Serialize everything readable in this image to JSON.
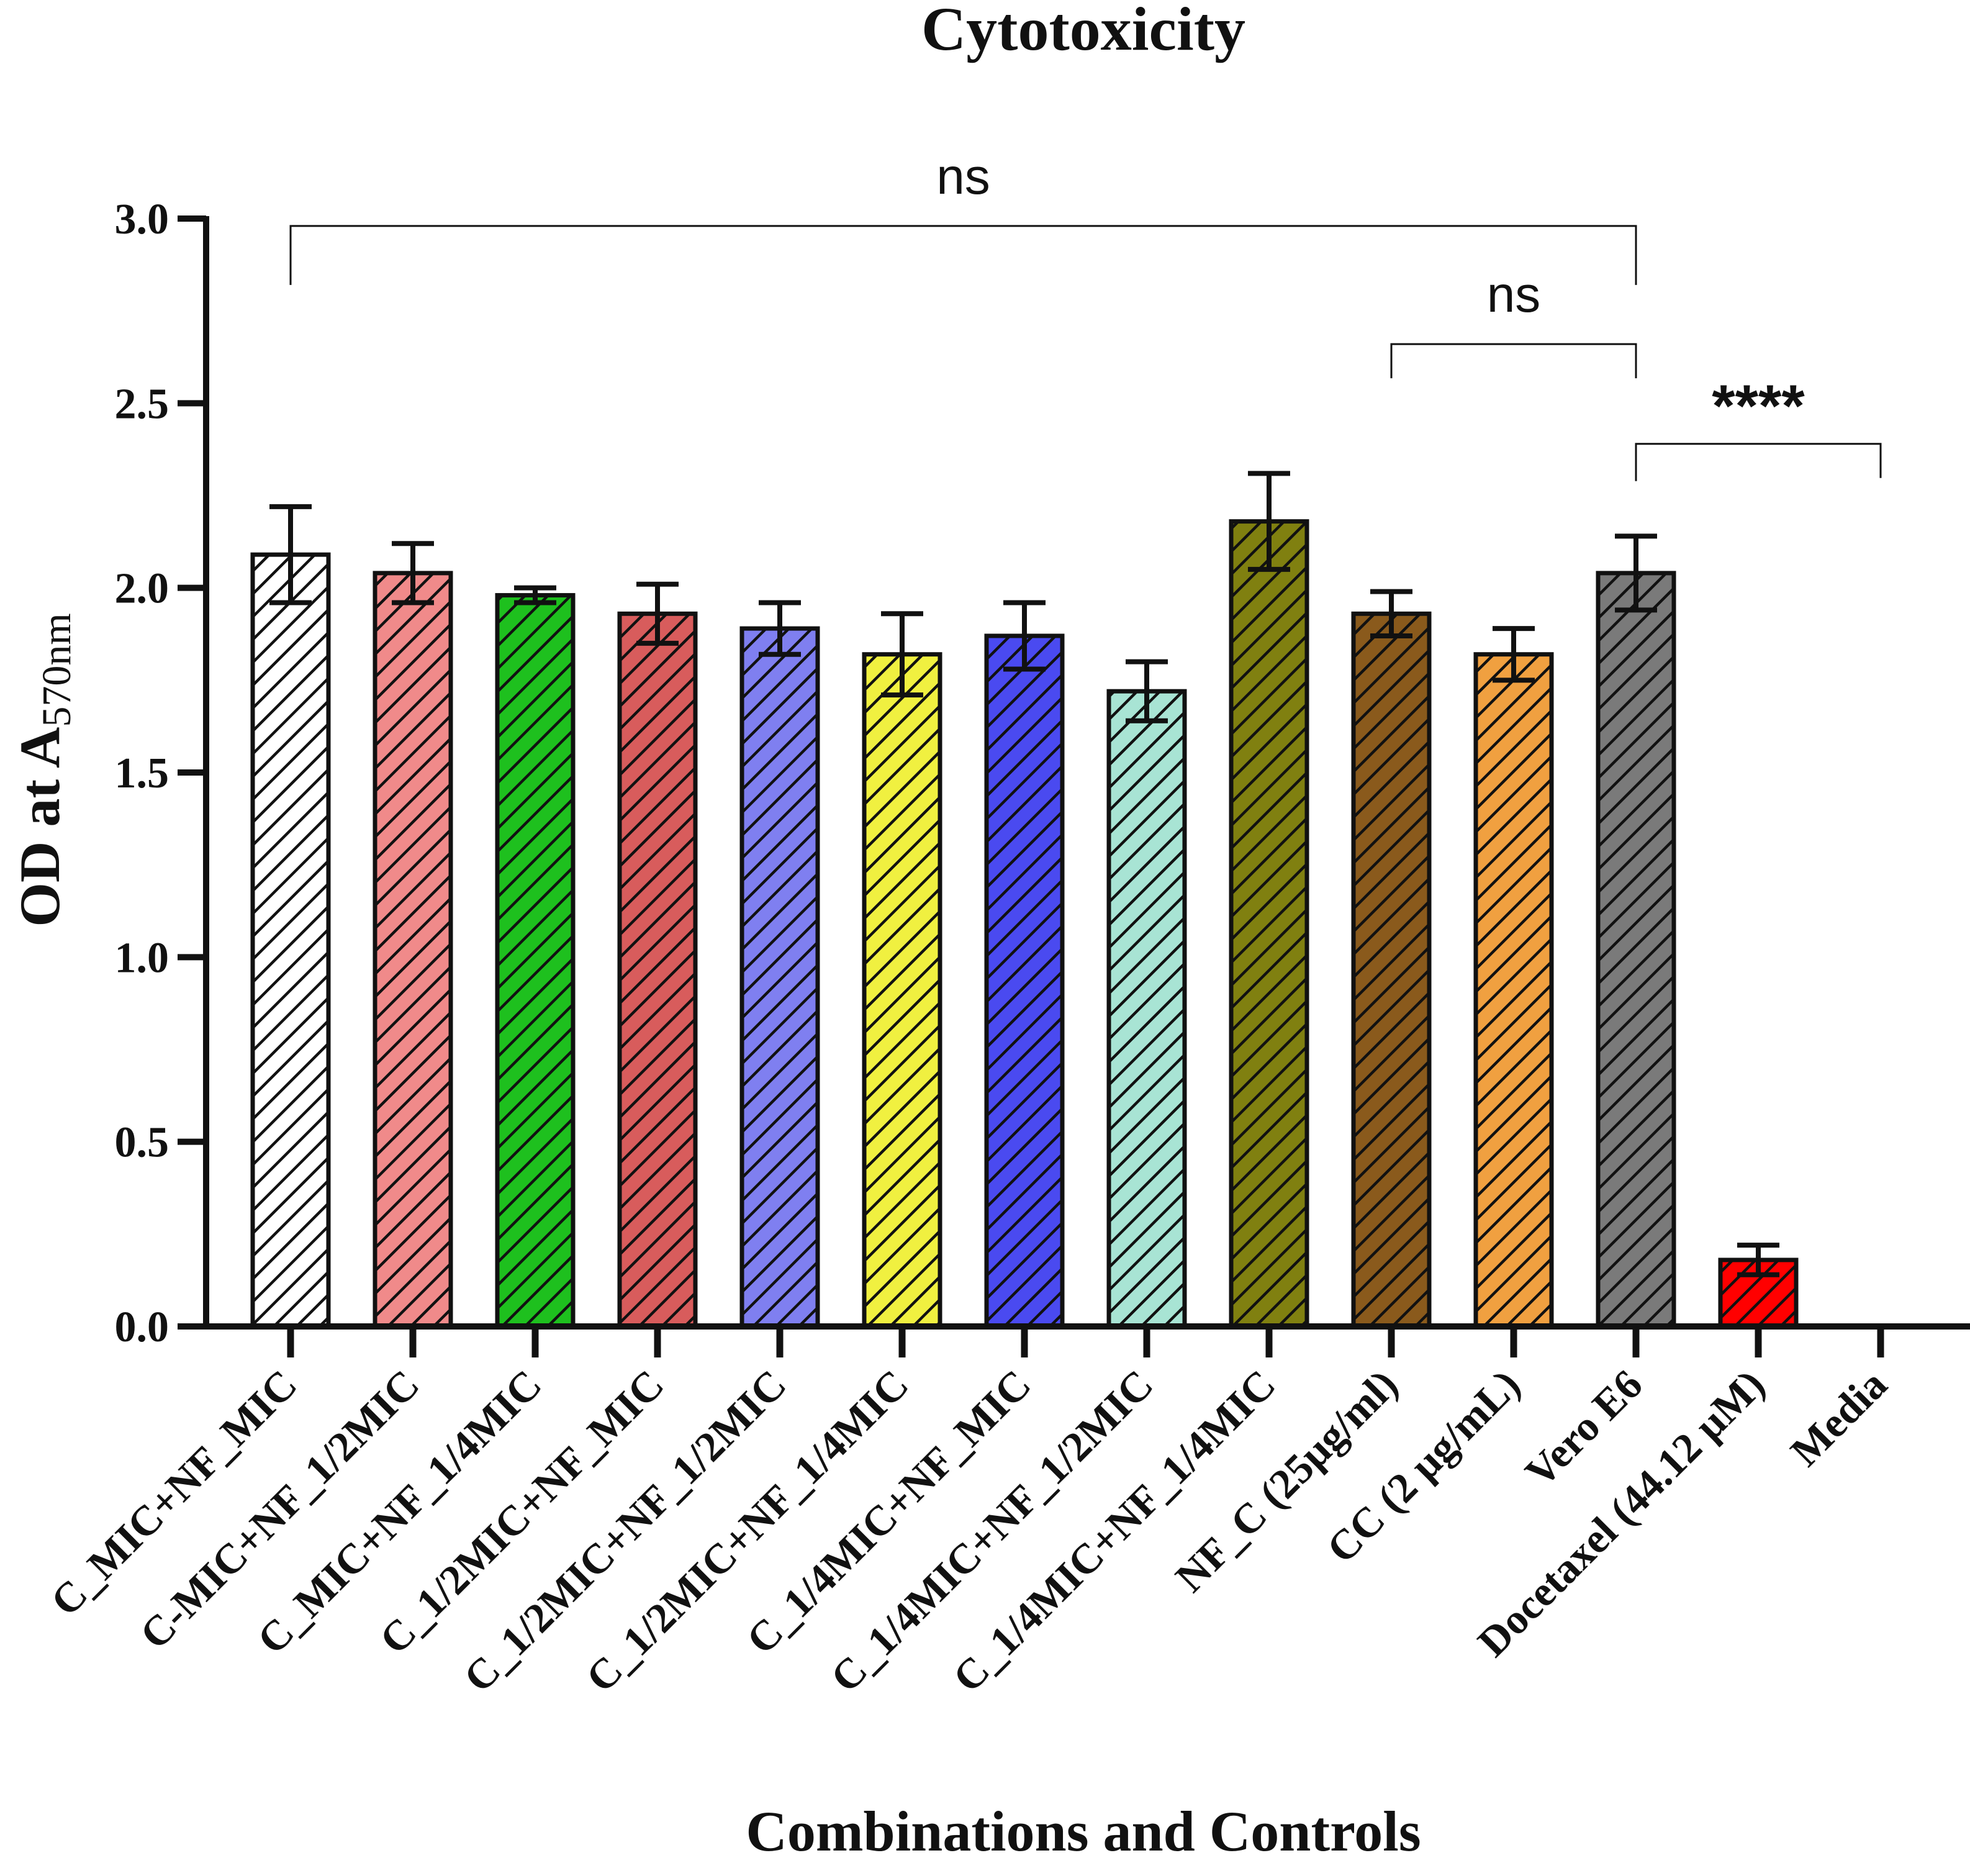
{
  "chart_data": {
    "type": "bar",
    "title": "Cytotoxicity",
    "xlabel": "Combinations and Controls",
    "ylabel_main": "OD at A",
    "ylabel_sub": "570nm",
    "ylim": [
      0,
      3
    ],
    "yticks": [
      "0.0",
      "0.5",
      "1.0",
      "1.5",
      "2.0",
      "2.5",
      "3.0"
    ],
    "categories": [
      "C_MIC+NF_MIC",
      "C-MIC+NF_1/2MIC",
      "C_MIC+NF_1/4MIC",
      "C_1/2MIC+NF_MIC",
      "C_1/2MIC+NF_1/2MIC",
      "C_1/2MIC+NF_1/4MIC",
      "C_1/4MIC+NF_MIC",
      "C_1/4MIC+NF_1/2MIC",
      "C_1/4MIC+NF_1/4MIC",
      "NF_C (25µg/ml)",
      "CC (2 µg/mL)",
      "Vero  E6",
      "Docetaxel (44.12 µM)",
      "Media"
    ],
    "values": [
      2.09,
      2.04,
      1.98,
      1.93,
      1.89,
      1.82,
      1.87,
      1.72,
      2.18,
      1.93,
      1.82,
      2.04,
      0.18,
      0
    ],
    "errors": [
      0.13,
      0.08,
      0.02,
      0.08,
      0.07,
      0.11,
      0.09,
      0.08,
      0.13,
      0.06,
      0.07,
      0.1,
      0.04,
      0
    ],
    "colors": [
      "#ffffff",
      "#f08a8a",
      "#1ec01e",
      "#d85c5c",
      "#7f7ff0",
      "#f0f040",
      "#4a4af0",
      "#a8e4d4",
      "#808010",
      "#8a5a1c",
      "#f0a040",
      "#7a7a7a",
      "#ff0000",
      "#ffffff"
    ],
    "significance": [
      {
        "label": "ns",
        "from": 0,
        "to": 11,
        "y": 2.98
      },
      {
        "label": "ns",
        "from": 9,
        "to": 11,
        "y": 2.66
      },
      {
        "label": "****",
        "from": 11,
        "to": 13,
        "y": 2.39
      }
    ]
  }
}
